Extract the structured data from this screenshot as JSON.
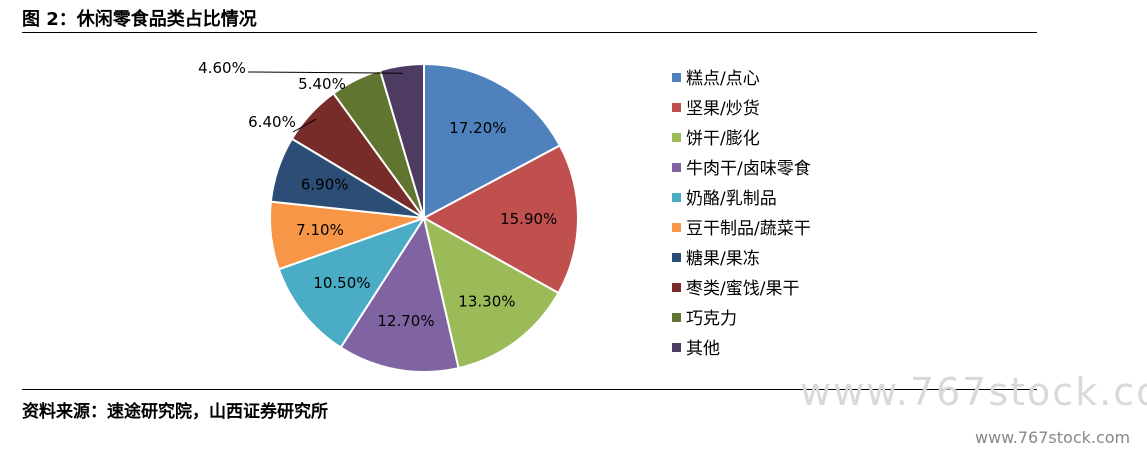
{
  "header": {
    "title": "图 2：休闲零食品类占比情况"
  },
  "footer": {
    "source": "资料来源：速途研究院，山西证券研究所"
  },
  "watermark": {
    "large": "www.767stock.com",
    "small": "www.767stock.com"
  },
  "chart_data": {
    "type": "pie",
    "categories": [
      "糕点/点心",
      "坚果/炒货",
      "饼干/膨化",
      "牛肉干/卤味零食",
      "奶酪/乳制品",
      "豆干制品/蔬菜干",
      "糖果/果冻",
      "枣类/蜜饯/果干",
      "巧克力",
      "其他"
    ],
    "values": [
      17.2,
      15.9,
      13.3,
      12.7,
      10.5,
      7.1,
      6.9,
      6.4,
      5.4,
      4.6
    ],
    "labels": [
      "17.20%",
      "15.90%",
      "13.30%",
      "12.70%",
      "10.50%",
      "7.10%",
      "6.90%",
      "6.40%",
      "5.40%",
      "4.60%"
    ],
    "colors": [
      "#4F81BD",
      "#C0504D",
      "#9BBB59",
      "#8064A2",
      "#4BACC6",
      "#F79646",
      "#2C4D75",
      "#772C2A",
      "#5F7530",
      "#4D3B62"
    ],
    "legend_position": "right"
  }
}
